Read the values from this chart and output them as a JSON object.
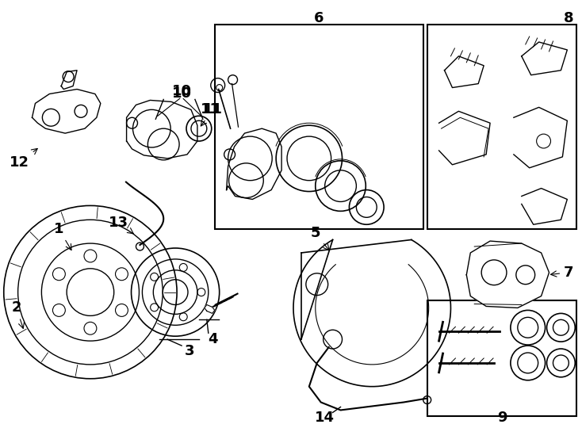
{
  "background_color": "#ffffff",
  "line_color": "#000000",
  "label_fontsize": 13
}
